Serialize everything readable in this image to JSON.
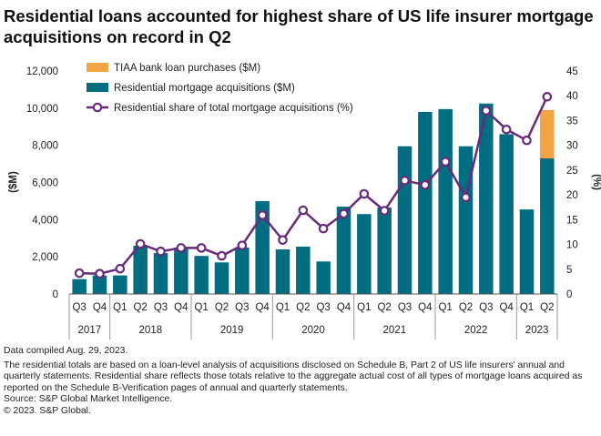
{
  "title": "Residential loans accounted for highest share of US life insurer mortgage acquisitions on record in Q2",
  "footnotes": {
    "compiled": "Data compiled Aug. 29, 2023.",
    "description": "The residential totals are based on a loan-level analysis of acquisitions disclosed on Schedule B, Part 2 of US life insurers' annual and quarterly statements. Residential share reflects those totals relative to the aggregate actual cost of all types of mortgage loans acquired as reported on the Schedule B-Verification pages of annual and quarterly statements.",
    "source": "Source: S&P Global Market Intelligence.",
    "copyright": "© 2023. S&P Global."
  },
  "colors": {
    "tiaa": "#f2a444",
    "residential": "#006e80",
    "share": "#6a2a7c"
  },
  "chart_data": {
    "type": "bar",
    "stacked": true,
    "quarters": [
      "Q3",
      "Q4",
      "Q1",
      "Q2",
      "Q3",
      "Q4",
      "Q1",
      "Q2",
      "Q3",
      "Q4",
      "Q1",
      "Q2",
      "Q3",
      "Q4",
      "Q1",
      "Q2",
      "Q3",
      "Q4",
      "Q1",
      "Q2",
      "Q3",
      "Q4",
      "Q1",
      "Q2"
    ],
    "years": [
      {
        "label": "2017",
        "count": 2
      },
      {
        "label": "2018",
        "count": 4
      },
      {
        "label": "2019",
        "count": 4
      },
      {
        "label": "2020",
        "count": 4
      },
      {
        "label": "2021",
        "count": 4
      },
      {
        "label": "2022",
        "count": 4
      },
      {
        "label": "2023",
        "count": 2
      }
    ],
    "series": [
      {
        "name": "TIAA bank loan purchases ($M)",
        "kind": "bar",
        "axis": "left",
        "values": [
          0,
          0,
          0,
          0,
          0,
          0,
          0,
          0,
          0,
          0,
          0,
          0,
          0,
          0,
          0,
          0,
          0,
          0,
          0,
          0,
          0,
          0,
          0,
          2600
        ]
      },
      {
        "name": "Residential mortgage acquisitions ($M)",
        "kind": "bar",
        "axis": "left",
        "values": [
          800,
          1000,
          1000,
          2600,
          2200,
          2500,
          2050,
          1700,
          2500,
          5000,
          2400,
          2550,
          1750,
          4700,
          4300,
          4650,
          7950,
          9800,
          9950,
          7950,
          10250,
          8600,
          4550,
          7300
        ]
      },
      {
        "name": "Residential share of total mortgage acquisitions (%)",
        "kind": "line",
        "axis": "right",
        "values": [
          4.2,
          4.1,
          5.1,
          10.1,
          8.6,
          9.3,
          9.3,
          7.7,
          9.8,
          15.9,
          10.9,
          16.9,
          13.2,
          16.2,
          20.2,
          16.8,
          22.9,
          22.0,
          26.7,
          19.5,
          37.0,
          33.2,
          31.0,
          39.8
        ]
      }
    ],
    "ylabel": "($M)",
    "y2label": "(%)",
    "ylim": [
      0,
      12000
    ],
    "yticks": [
      "0",
      "2,000",
      "4,000",
      "6,000",
      "8,000",
      "10,000",
      "12,000"
    ],
    "y2lim": [
      0,
      45
    ],
    "y2ticks": [
      "0",
      "5",
      "10",
      "15",
      "20",
      "25",
      "30",
      "35",
      "40",
      "45"
    ],
    "legend_position": "top-left",
    "grid": false
  }
}
